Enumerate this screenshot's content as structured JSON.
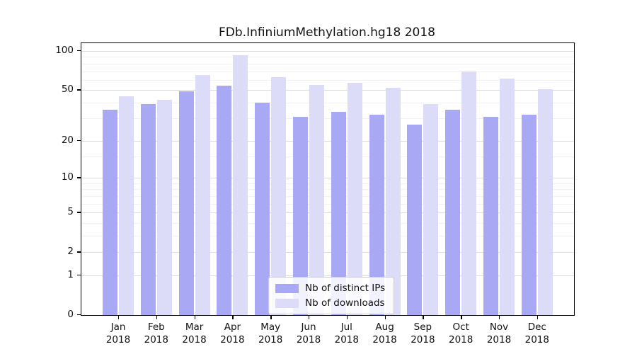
{
  "chart_data": {
    "type": "bar",
    "title": "FDb.InfiniumMethylation.hg18 2018",
    "categories": [
      "Jan",
      "Feb",
      "Mar",
      "Apr",
      "May",
      "Jun",
      "Jul",
      "Aug",
      "Sep",
      "Oct",
      "Nov",
      "Dec"
    ],
    "year_label": "2018",
    "series": [
      {
        "name": "Nb of distinct IPs",
        "color": "#a8a8f5",
        "values": [
          35,
          39,
          49,
          54,
          40,
          31,
          34,
          32,
          27,
          35,
          31,
          32
        ]
      },
      {
        "name": "Nb of downloads",
        "color": "#dcdcf8",
        "values": [
          45,
          42,
          65,
          93,
          63,
          55,
          57,
          52,
          39,
          70,
          61,
          51
        ]
      }
    ],
    "xlabel": "",
    "ylabel": "",
    "y_scale": "log1p",
    "y_ticks": [
      0,
      1,
      2,
      5,
      10,
      20,
      50,
      100
    ],
    "y_minor_ticks": [
      3,
      4,
      6,
      7,
      8,
      9,
      15,
      30,
      40,
      60,
      70,
      80,
      90
    ],
    "ylim": [
      0,
      114.7
    ],
    "grid": "horizontal",
    "legend_position": "bottom-center",
    "colors": {
      "major_grid": "#dcdcdc",
      "minor_grid": "#f2f2f2",
      "spine": "#000000",
      "text": "#111111",
      "legend_border": "#cccccc"
    }
  }
}
